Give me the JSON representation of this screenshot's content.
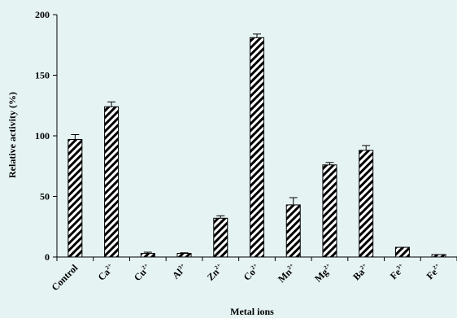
{
  "chart_data": {
    "type": "bar",
    "categories": [
      {
        "base": "Control",
        "sup": ""
      },
      {
        "base": "Ca",
        "sup": "2+"
      },
      {
        "base": "Cu",
        "sup": "2+"
      },
      {
        "base": "Al",
        "sup": "3+"
      },
      {
        "base": "Zn",
        "sup": "2+"
      },
      {
        "base": "Co",
        "sup": "2+"
      },
      {
        "base": "Mn",
        "sup": "2+"
      },
      {
        "base": "Mg",
        "sup": "2+"
      },
      {
        "base": "Ba",
        "sup": "2+"
      },
      {
        "base": "Fe",
        "sup": "3+"
      },
      {
        "base": "Fe",
        "sup": "2+"
      }
    ],
    "values": [
      97,
      124,
      3,
      3,
      32,
      181,
      43,
      76,
      88,
      8,
      2
    ],
    "errors": [
      4,
      4,
      1,
      0.5,
      2,
      3,
      6,
      2,
      4,
      0,
      0
    ],
    "yticks": [
      0,
      50,
      100,
      150,
      200
    ],
    "ylim": [
      0,
      200
    ],
    "xlabel": "Metal ions",
    "ylabel": "Relative activity (%)",
    "bar_pattern": "diagonal-hatch",
    "colors": {
      "background": "#e6f3f3",
      "bar_fill": "#ffffff",
      "stroke": "#000000"
    }
  }
}
